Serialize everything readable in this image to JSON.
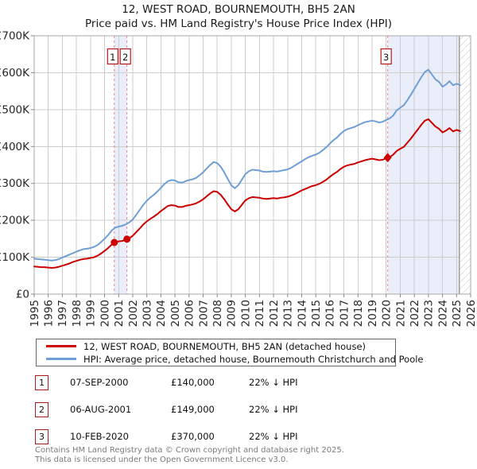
{
  "title": {
    "line1": "12, WEST ROAD, BOURNEMOUTH, BH5 2AN",
    "line2": "Price paid vs. HM Land Registry's House Price Index (HPI)"
  },
  "chart_data": {
    "type": "line",
    "x_range": [
      1995,
      2026
    ],
    "y_range": [
      0,
      700
    ],
    "y_unit": "GBP thousands",
    "x_ticks": [
      1995,
      1996,
      1997,
      1998,
      1999,
      2000,
      2001,
      2002,
      2003,
      2004,
      2005,
      2006,
      2007,
      2008,
      2009,
      2010,
      2011,
      2012,
      2013,
      2014,
      2015,
      2016,
      2017,
      2018,
      2019,
      2020,
      2021,
      2022,
      2023,
      2024,
      2025,
      2026
    ],
    "y_tick_labels": [
      "£0",
      "£100K",
      "£200K",
      "£300K",
      "£400K",
      "£500K",
      "£600K",
      "£700K"
    ],
    "grid": true,
    "legend_position": "bottom",
    "colors": {
      "price_line": "#cc0000",
      "hpi_line": "#6f9fd4",
      "band": "#e9eefa",
      "dashed": "#f08080",
      "grid": "#cccccc",
      "border": "#a8a8a8",
      "hatch": "#bfbfbf",
      "badge_border": "#b41919"
    },
    "bands": [
      [
        2000.69,
        2001.59
      ],
      [
        2020.11,
        2025.2
      ]
    ],
    "hatch_from": 2025.2,
    "series": [
      {
        "name": "12, WEST ROAD, BOURNEMOUTH, BH5 2AN (detached house)",
        "color": "#cc0000",
        "x_start": 1995,
        "x_step": 0.25,
        "values": [
          75,
          74,
          73,
          73,
          72,
          71,
          72,
          74,
          77,
          80,
          83,
          87,
          90,
          93,
          95,
          96,
          98,
          100,
          104,
          110,
          117,
          125,
          134,
          140,
          143,
          144,
          147,
          151,
          158,
          168,
          178,
          189,
          197,
          204,
          210,
          217,
          225,
          232,
          239,
          241,
          240,
          236,
          236,
          239,
          241,
          243,
          246,
          251,
          257,
          265,
          273,
          279,
          277,
          269,
          257,
          243,
          230,
          224,
          230,
          242,
          254,
          260,
          263,
          262,
          261,
          259,
          258,
          259,
          260,
          259,
          261,
          262,
          264,
          267,
          271,
          276,
          281,
          285,
          289,
          293,
          295,
          299,
          304,
          310,
          318,
          325,
          331,
          339,
          345,
          349,
          351,
          353,
          357,
          360,
          363,
          365,
          367,
          365,
          363,
          364,
          368,
          371,
          378,
          388,
          394,
          399,
          410,
          421,
          434,
          446,
          459,
          470,
          474,
          464,
          454,
          448,
          438,
          443,
          450,
          441,
          445,
          442
        ]
      },
      {
        "name": "HPI: Average price, detached house, Bournemouth Christchurch and Poole",
        "color": "#6f9fd4",
        "x_start": 1995,
        "x_step": 0.25,
        "values": [
          96,
          95,
          94,
          93,
          92,
          91,
          92,
          95,
          99,
          103,
          107,
          111,
          115,
          119,
          122,
          123,
          125,
          128,
          133,
          141,
          150,
          160,
          172,
          180,
          183,
          185,
          189,
          194,
          202,
          215,
          228,
          242,
          253,
          262,
          269,
          278,
          288,
          298,
          306,
          309,
          308,
          303,
          302,
          306,
          309,
          311,
          315,
          322,
          330,
          340,
          350,
          358,
          355,
          345,
          330,
          312,
          295,
          287,
          295,
          310,
          325,
          333,
          337,
          336,
          335,
          332,
          331,
          332,
          333,
          332,
          334,
          336,
          338,
          342,
          348,
          354,
          360,
          366,
          371,
          375,
          378,
          383,
          390,
          398,
          408,
          417,
          424,
          434,
          442,
          447,
          450,
          453,
          458,
          462,
          466,
          468,
          470,
          468,
          465,
          467,
          472,
          476,
          484,
          498,
          505,
          512,
          525,
          540,
          556,
          572,
          588,
          602,
          608,
          595,
          582,
          575,
          562,
          568,
          577,
          566,
          570,
          567
        ]
      }
    ],
    "sales": [
      {
        "n": "1",
        "x": 2000.69,
        "y": 140,
        "marker": "circle"
      },
      {
        "n": "2",
        "x": 2001.59,
        "y": 149,
        "marker": "circle"
      },
      {
        "n": "3",
        "x": 2020.11,
        "y": 370,
        "marker": "diamond"
      }
    ]
  },
  "legend": {
    "items": [
      {
        "label": "12, WEST ROAD, BOURNEMOUTH, BH5 2AN (detached house)",
        "color": "#cc0000"
      },
      {
        "label": "HPI: Average price, detached house, Bournemouth Christchurch and Poole",
        "color": "#6f9fd4"
      }
    ]
  },
  "sales_table": {
    "rows": [
      {
        "num": "1",
        "date": "07-SEP-2000",
        "price": "£140,000",
        "vs_hpi": "22% ↓ HPI"
      },
      {
        "num": "2",
        "date": "06-AUG-2001",
        "price": "£149,000",
        "vs_hpi": "22% ↓ HPI"
      },
      {
        "num": "3",
        "date": "10-FEB-2020",
        "price": "£370,000",
        "vs_hpi": "22% ↓ HPI"
      }
    ]
  },
  "footer": {
    "line1": "Contains HM Land Registry data © Crown copyright and database right 2025.",
    "line2": "This data is licensed under the Open Government Licence v3.0."
  }
}
